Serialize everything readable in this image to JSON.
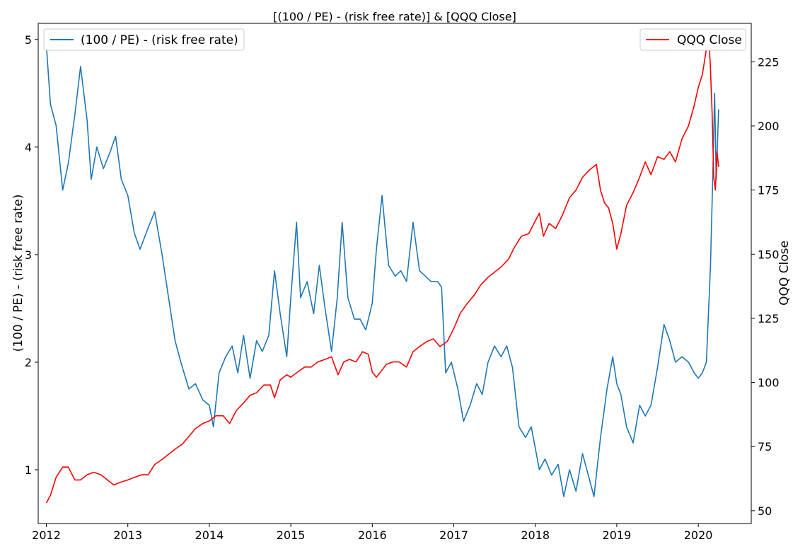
{
  "chart_data": {
    "type": "line",
    "title": "[(100 / PE) -  (risk free rate)] & [QQQ Close]",
    "xlabel": "",
    "x_range": [
      2011.9,
      2020.65
    ],
    "x_ticks": [
      "2012",
      "2013",
      "2014",
      "2015",
      "2016",
      "2017",
      "2018",
      "2019",
      "2020"
    ],
    "y_left": {
      "label": "(100 / PE) -  (risk free rate)",
      "ylim": [
        0.5,
        5.15
      ],
      "ticks": [
        "1",
        "2",
        "3",
        "4",
        "5"
      ]
    },
    "y_right": {
      "label": "QQQ Close",
      "ylim": [
        45,
        240
      ],
      "ticks": [
        "50",
        "75",
        "100",
        "125",
        "150",
        "175",
        "200",
        "225"
      ]
    },
    "series": [
      {
        "name": "(100 / PE) -  (risk free rate)",
        "axis": "left",
        "color": "#1f77b4",
        "legend_position": "upper-left",
        "x": [
          2012.0,
          2012.05,
          2012.12,
          2012.2,
          2012.27,
          2012.35,
          2012.42,
          2012.5,
          2012.55,
          2012.62,
          2012.7,
          2012.78,
          2012.85,
          2012.92,
          2013.0,
          2013.08,
          2013.15,
          2013.25,
          2013.33,
          2013.42,
          2013.5,
          2013.58,
          2013.65,
          2013.75,
          2013.83,
          2013.92,
          2014.0,
          2014.05,
          2014.12,
          2014.2,
          2014.28,
          2014.35,
          2014.42,
          2014.5,
          2014.58,
          2014.65,
          2014.73,
          2014.8,
          2014.87,
          2014.95,
          2015.0,
          2015.07,
          2015.12,
          2015.2,
          2015.28,
          2015.35,
          2015.42,
          2015.5,
          2015.57,
          2015.63,
          2015.7,
          2015.78,
          2015.85,
          2015.92,
          2016.0,
          2016.05,
          2016.12,
          2016.2,
          2016.28,
          2016.35,
          2016.42,
          2016.5,
          2016.58,
          2016.65,
          2016.72,
          2016.8,
          2016.85,
          2016.9,
          2016.97,
          2017.05,
          2017.12,
          2017.2,
          2017.28,
          2017.35,
          2017.42,
          2017.5,
          2017.58,
          2017.65,
          2017.72,
          2017.8,
          2017.88,
          2017.95,
          2018.05,
          2018.12,
          2018.2,
          2018.28,
          2018.35,
          2018.42,
          2018.5,
          2018.58,
          2018.65,
          2018.72,
          2018.8,
          2018.88,
          2018.95,
          2019.0,
          2019.05,
          2019.12,
          2019.2,
          2019.28,
          2019.35,
          2019.42,
          2019.5,
          2019.58,
          2019.65,
          2019.72,
          2019.8,
          2019.88,
          2019.95,
          2020.0,
          2020.05,
          2020.1,
          2020.15,
          2020.18,
          2020.2,
          2020.22,
          2020.25
        ],
        "y": [
          4.95,
          4.4,
          4.2,
          3.6,
          3.85,
          4.3,
          4.75,
          4.25,
          3.7,
          4.0,
          3.8,
          3.95,
          4.1,
          3.7,
          3.55,
          3.2,
          3.05,
          3.25,
          3.4,
          3.0,
          2.6,
          2.2,
          2.0,
          1.75,
          1.8,
          1.65,
          1.6,
          1.4,
          1.9,
          2.05,
          2.15,
          1.9,
          2.25,
          1.85,
          2.2,
          2.1,
          2.25,
          2.85,
          2.45,
          2.05,
          2.6,
          3.3,
          2.6,
          2.75,
          2.45,
          2.9,
          2.5,
          2.1,
          2.6,
          3.3,
          2.6,
          2.4,
          2.4,
          2.3,
          2.55,
          3.05,
          3.55,
          2.9,
          2.8,
          2.85,
          2.75,
          3.3,
          2.85,
          2.8,
          2.75,
          2.75,
          2.7,
          1.9,
          2.0,
          1.75,
          1.45,
          1.6,
          1.8,
          1.7,
          2.0,
          2.15,
          2.05,
          2.15,
          1.95,
          1.4,
          1.3,
          1.4,
          1.0,
          1.1,
          0.95,
          1.05,
          0.75,
          1.0,
          0.8,
          1.15,
          0.95,
          0.75,
          1.3,
          1.75,
          2.05,
          1.8,
          1.7,
          1.4,
          1.25,
          1.6,
          1.5,
          1.6,
          1.95,
          2.35,
          2.2,
          2.0,
          2.05,
          2.0,
          1.9,
          1.85,
          1.9,
          2.0,
          2.9,
          3.8,
          4.5,
          3.7,
          4.35
        ]
      },
      {
        "name": "QQQ Close",
        "axis": "right",
        "color": "#ff0000",
        "legend_position": "upper-right",
        "x": [
          2012.0,
          2012.05,
          2012.12,
          2012.2,
          2012.27,
          2012.35,
          2012.42,
          2012.5,
          2012.58,
          2012.67,
          2012.75,
          2012.83,
          2012.9,
          2013.0,
          2013.08,
          2013.17,
          2013.25,
          2013.33,
          2013.42,
          2013.5,
          2013.58,
          2013.67,
          2013.75,
          2013.83,
          2013.92,
          2014.0,
          2014.08,
          2014.17,
          2014.25,
          2014.33,
          2014.42,
          2014.5,
          2014.58,
          2014.67,
          2014.75,
          2014.8,
          2014.87,
          2014.95,
          2015.0,
          2015.08,
          2015.17,
          2015.25,
          2015.33,
          2015.42,
          2015.5,
          2015.58,
          2015.65,
          2015.72,
          2015.8,
          2015.88,
          2015.95,
          2016.0,
          2016.05,
          2016.1,
          2016.17,
          2016.25,
          2016.33,
          2016.42,
          2016.5,
          2016.58,
          2016.67,
          2016.75,
          2016.83,
          2016.92,
          2017.0,
          2017.08,
          2017.17,
          2017.25,
          2017.33,
          2017.42,
          2017.5,
          2017.58,
          2017.67,
          2017.75,
          2017.83,
          2017.92,
          2018.0,
          2018.05,
          2018.1,
          2018.17,
          2018.25,
          2018.33,
          2018.42,
          2018.5,
          2018.58,
          2018.67,
          2018.75,
          2018.8,
          2018.85,
          2018.9,
          2018.95,
          2019.0,
          2019.05,
          2019.12,
          2019.2,
          2019.28,
          2019.35,
          2019.42,
          2019.5,
          2019.58,
          2019.65,
          2019.72,
          2019.8,
          2019.88,
          2019.95,
          2020.0,
          2020.05,
          2020.1,
          2020.13,
          2020.15,
          2020.17,
          2020.19,
          2020.21,
          2020.23,
          2020.25
        ],
        "y": [
          53,
          56,
          63,
          67,
          67,
          62,
          62,
          64,
          65,
          64,
          62,
          60,
          61,
          62,
          63,
          64,
          64,
          68,
          70,
          72,
          74,
          76,
          79,
          82,
          84,
          85,
          87,
          87,
          84,
          89,
          92,
          95,
          96,
          99,
          99,
          94,
          101,
          103,
          102,
          104,
          106,
          106,
          108,
          109,
          110,
          103,
          108,
          109,
          108,
          112,
          111,
          104,
          102,
          104,
          107,
          108,
          108,
          106,
          112,
          114,
          116,
          117,
          114,
          116,
          121,
          127,
          131,
          134,
          138,
          141,
          143,
          145,
          148,
          153,
          157,
          158,
          163,
          166,
          157,
          162,
          160,
          165,
          172,
          175,
          180,
          183,
          185,
          175,
          170,
          168,
          162,
          152,
          158,
          169,
          174,
          180,
          186,
          181,
          188,
          187,
          190,
          186,
          195,
          200,
          208,
          215,
          220,
          230,
          235,
          222,
          205,
          180,
          175,
          190,
          184
        ]
      }
    ]
  }
}
